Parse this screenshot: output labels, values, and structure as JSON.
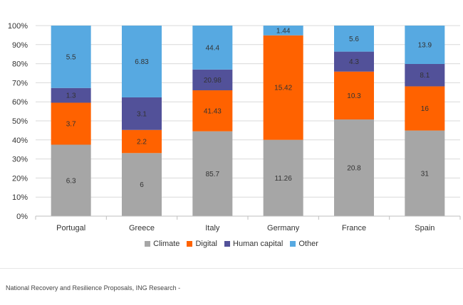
{
  "chart_data": {
    "type": "bar",
    "stacked": true,
    "normalized": true,
    "categories": [
      "Portugal",
      "Greece",
      "Italy",
      "Germany",
      "France",
      "Spain"
    ],
    "series": [
      {
        "name": "Climate",
        "color": "#a6a6a6",
        "values": [
          6.3,
          6,
          85.7,
          11.26,
          20.8,
          31
        ]
      },
      {
        "name": "Digital",
        "color": "#ff6200",
        "values": [
          3.7,
          2.2,
          41.43,
          15.42,
          10.3,
          16
        ]
      },
      {
        "name": "Human capital",
        "color": "#525199",
        "values": [
          1.3,
          3.1,
          20.98,
          0,
          4.3,
          8.1
        ]
      },
      {
        "name": "Other",
        "color": "#57a9e1",
        "values": [
          5.5,
          6.83,
          44.4,
          1.44,
          5.6,
          13.9
        ]
      }
    ],
    "data_labels": [
      [
        "6.3",
        "6",
        "85.7",
        "11.26",
        "20.8",
        "31"
      ],
      [
        "3.7",
        "2.2",
        "41.43",
        "15.42",
        "10.3",
        "16"
      ],
      [
        "1.3",
        "3.1",
        "20.98",
        "",
        "4.3",
        "8.1"
      ],
      [
        "5.5",
        "6.83",
        "44.4",
        "1.44",
        "5.6",
        "13.9"
      ]
    ],
    "y_ticks": [
      "0%",
      "10%",
      "20%",
      "30%",
      "40%",
      "50%",
      "60%",
      "70%",
      "80%",
      "90%",
      "100%"
    ],
    "ylim": [
      0,
      100
    ],
    "grid": true,
    "legend_position": "bottom"
  },
  "source": "National Recovery and Resilience Proposals, ING Research -"
}
